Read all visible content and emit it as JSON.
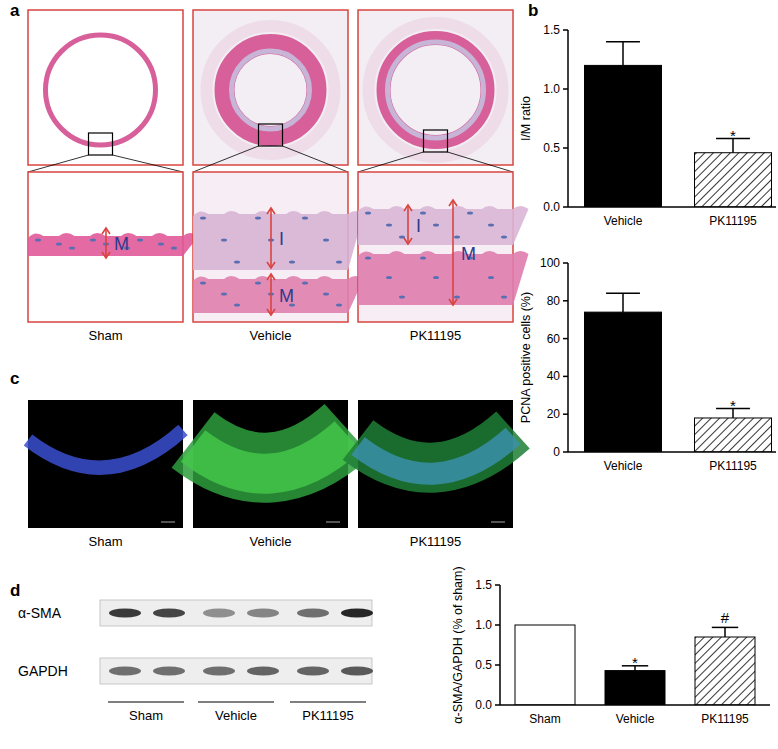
{
  "figure": {
    "panel_labels": [
      "a",
      "b",
      "c",
      "d"
    ],
    "image_groups": [
      "Sham",
      "Vehicle",
      "PK11195"
    ],
    "layer_labels": [
      "I",
      "M"
    ],
    "blot_proteins": [
      "α-SMA",
      "GAPDH"
    ]
  },
  "chart_data": [
    {
      "type": "bar",
      "categories": [
        "Vehicle",
        "PK11195"
      ],
      "values": [
        1.2,
        0.46
      ],
      "errors": [
        0.2,
        0.12
      ],
      "significance": [
        null,
        "*"
      ],
      "y_label": "I/M ratio",
      "ylim": [
        0,
        1.5
      ],
      "yticks": [
        {
          "value": 0,
          "label": "0.0"
        },
        0.5,
        {
          "value": 1,
          "label": "1.0"
        },
        1.5
      ],
      "colors": [
        "#000000",
        "#000000"
      ]
    },
    {
      "type": "bar",
      "categories": [
        "Vehicle",
        "PK11195"
      ],
      "values": [
        74,
        18
      ],
      "errors": [
        10,
        5
      ],
      "significance": [
        null,
        "*"
      ],
      "y_label": "PCNA positive cells (%)",
      "ylim": [
        0,
        100
      ],
      "yticks": [
        0,
        20,
        40,
        60,
        80,
        100
      ],
      "colors": [
        "#000000",
        "#000000"
      ]
    },
    {
      "type": "bar",
      "categories": [
        "Sham",
        "Vehicle",
        "PK11195"
      ],
      "values": [
        1.0,
        0.43,
        0.85
      ],
      "errors": [
        null,
        0.06,
        0.12
      ],
      "significance": [
        null,
        "*",
        "#"
      ],
      "y_label": "α-SMA/GAPDH (% of sham)",
      "ylim": [
        0,
        1.5
      ],
      "yticks": [
        {
          "value": 0,
          "label": "0.0"
        },
        0.5,
        {
          "value": 1,
          "label": "1.0"
        },
        1.5
      ],
      "colors": [
        "#000000",
        "#000000",
        "#000000"
      ]
    }
  ]
}
